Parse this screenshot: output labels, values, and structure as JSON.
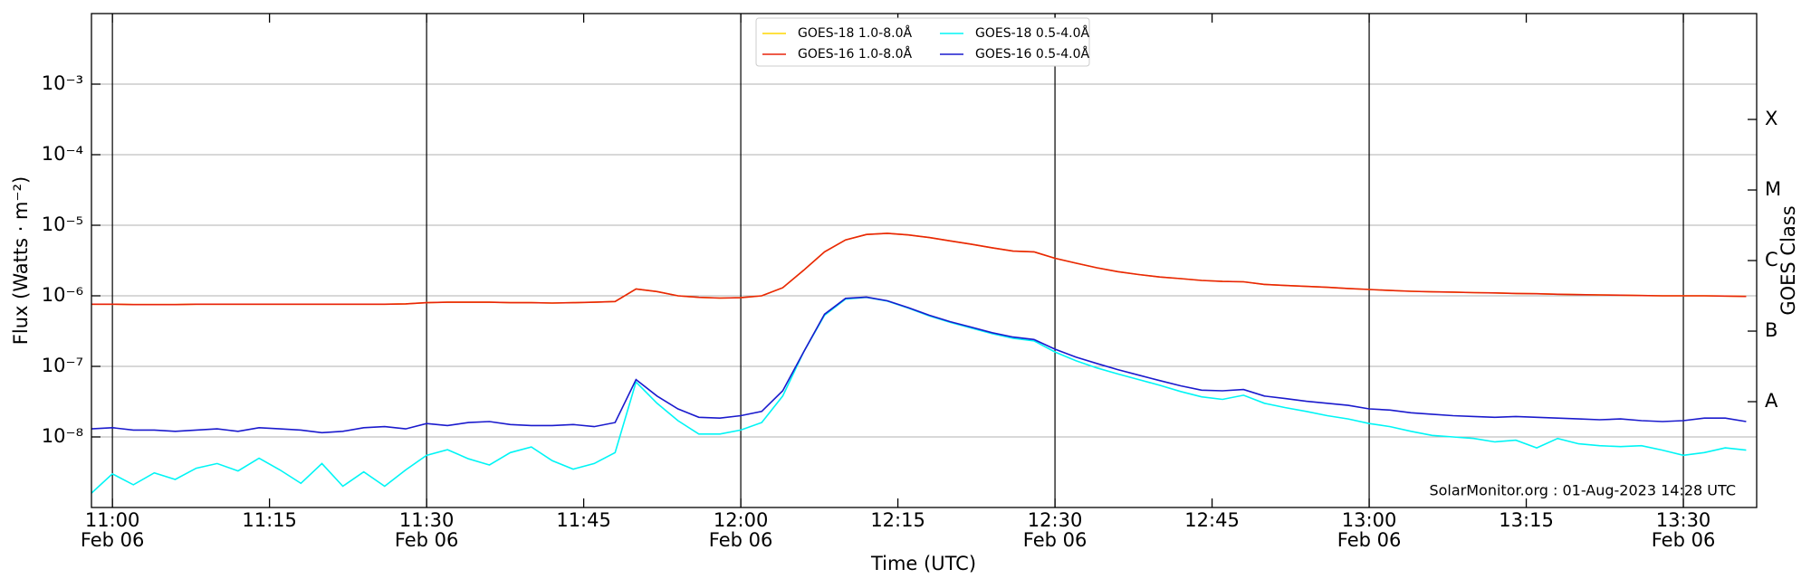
{
  "chart_data": {
    "type": "line",
    "xlabel": "Time (UTC)",
    "ylabel": "Flux (Watts · m⁻²)",
    "y2label": "GOES Class",
    "annotation": "SolarMonitor.org : 01-Aug-2023 14:28 UTC",
    "yscale": "log",
    "grid": true,
    "legend": "upper center",
    "xlim": [
      "10:58",
      "13:37"
    ],
    "ylim": [
      1e-09,
      0.01
    ],
    "y2lim": [
      1e-09,
      0.01
    ],
    "yticks": [
      {
        "value": 1e-08,
        "label": "10⁻⁸"
      },
      {
        "value": 1e-07,
        "label": "10⁻⁷"
      },
      {
        "value": 1e-06,
        "label": "10⁻⁶"
      },
      {
        "value": 1e-05,
        "label": "10⁻⁵"
      },
      {
        "value": 0.0001,
        "label": "10⁻⁴"
      },
      {
        "value": 0.001,
        "label": "10⁻³"
      }
    ],
    "y2ticks": [
      {
        "value": 3.16e-08,
        "label": "A"
      },
      {
        "value": 3.16e-07,
        "label": "B"
      },
      {
        "value": 3.16e-06,
        "label": "C"
      },
      {
        "value": 3.16e-05,
        "label": "M"
      },
      {
        "value": 0.000316,
        "label": "X"
      }
    ],
    "xticks": [
      {
        "value": "11:00",
        "label": "11:00",
        "date": "Feb 06"
      },
      {
        "value": "11:15",
        "label": "11:15"
      },
      {
        "value": "11:30",
        "label": "11:30",
        "date": "Feb 06"
      },
      {
        "value": "11:45",
        "label": "11:45"
      },
      {
        "value": "12:00",
        "label": "12:00",
        "date": "Feb 06"
      },
      {
        "value": "12:15",
        "label": "12:15"
      },
      {
        "value": "12:30",
        "label": "12:30",
        "date": "Feb 06"
      },
      {
        "value": "12:45",
        "label": "12:45"
      },
      {
        "value": "13:00",
        "label": "13:00",
        "date": "Feb 06"
      },
      {
        "value": "13:15",
        "label": "13:15"
      },
      {
        "value": "13:30",
        "label": "13:30",
        "date": "Feb 06"
      }
    ],
    "x": [
      "10:58",
      "11:00",
      "11:02",
      "11:04",
      "11:06",
      "11:08",
      "11:10",
      "11:12",
      "11:14",
      "11:16",
      "11:18",
      "11:20",
      "11:22",
      "11:24",
      "11:26",
      "11:28",
      "11:30",
      "11:32",
      "11:34",
      "11:36",
      "11:38",
      "11:40",
      "11:42",
      "11:44",
      "11:46",
      "11:48",
      "11:50",
      "11:52",
      "11:54",
      "11:56",
      "11:58",
      "12:00",
      "12:02",
      "12:04",
      "12:06",
      "12:08",
      "12:10",
      "12:12",
      "12:14",
      "12:16",
      "12:18",
      "12:20",
      "12:22",
      "12:24",
      "12:26",
      "12:28",
      "12:30",
      "12:32",
      "12:34",
      "12:36",
      "12:38",
      "12:40",
      "12:42",
      "12:44",
      "12:46",
      "12:48",
      "12:50",
      "12:52",
      "12:54",
      "12:56",
      "12:58",
      "13:00",
      "13:02",
      "13:04",
      "13:06",
      "13:08",
      "13:10",
      "13:12",
      "13:14",
      "13:16",
      "13:18",
      "13:20",
      "13:22",
      "13:24",
      "13:26",
      "13:28",
      "13:30",
      "13:32",
      "13:34",
      "13:36"
    ],
    "series": [
      {
        "name": "GOES-18 1.0-8.0Å",
        "color": "#ffd700",
        "values": [
          7.6e-07,
          7.6e-07,
          7.5e-07,
          7.5e-07,
          7.5e-07,
          7.6e-07,
          7.6e-07,
          7.6e-07,
          7.6e-07,
          7.6e-07,
          7.6e-07,
          7.6e-07,
          7.6e-07,
          7.6e-07,
          7.6e-07,
          7.7e-07,
          8e-07,
          8.1e-07,
          8.1e-07,
          8.1e-07,
          8e-07,
          8e-07,
          7.9e-07,
          8e-07,
          8.1e-07,
          8.3e-07,
          1.25e-06,
          1.15e-06,
          1e-06,
          9.5e-07,
          9.3e-07,
          9.4e-07,
          1e-06,
          1.3e-06,
          2.3e-06,
          4.2e-06,
          6.2e-06,
          7.4e-06,
          7.7e-06,
          7.3e-06,
          6.7e-06,
          6e-06,
          5.4e-06,
          4.8e-06,
          4.3e-06,
          4.2e-06,
          3.4e-06,
          2.9e-06,
          2.5e-06,
          2.2e-06,
          2e-06,
          1.85e-06,
          1.75e-06,
          1.65e-06,
          1.6e-06,
          1.58e-06,
          1.45e-06,
          1.4e-06,
          1.36e-06,
          1.32e-06,
          1.27e-06,
          1.23e-06,
          1.19e-06,
          1.16e-06,
          1.14e-06,
          1.13e-06,
          1.11e-06,
          1.1e-06,
          1.08e-06,
          1.07e-06,
          1.05e-06,
          1.04e-06,
          1.03e-06,
          1.02e-06,
          1.01e-06,
          1e-06,
          1e-06,
          1e-06,
          9.9e-07,
          9.8e-07
        ]
      },
      {
        "name": "GOES-16 1.0-8.0Å",
        "color": "#e8230c",
        "values": [
          7.6e-07,
          7.6e-07,
          7.5e-07,
          7.5e-07,
          7.5e-07,
          7.6e-07,
          7.6e-07,
          7.6e-07,
          7.6e-07,
          7.6e-07,
          7.6e-07,
          7.6e-07,
          7.6e-07,
          7.6e-07,
          7.6e-07,
          7.7e-07,
          8e-07,
          8.1e-07,
          8.1e-07,
          8.1e-07,
          8e-07,
          8e-07,
          7.9e-07,
          8e-07,
          8.1e-07,
          8.3e-07,
          1.25e-06,
          1.15e-06,
          1e-06,
          9.5e-07,
          9.3e-07,
          9.4e-07,
          1e-06,
          1.3e-06,
          2.3e-06,
          4.2e-06,
          6.2e-06,
          7.4e-06,
          7.7e-06,
          7.3e-06,
          6.7e-06,
          6e-06,
          5.4e-06,
          4.8e-06,
          4.3e-06,
          4.2e-06,
          3.4e-06,
          2.9e-06,
          2.5e-06,
          2.2e-06,
          2e-06,
          1.85e-06,
          1.75e-06,
          1.65e-06,
          1.6e-06,
          1.58e-06,
          1.45e-06,
          1.4e-06,
          1.36e-06,
          1.32e-06,
          1.27e-06,
          1.23e-06,
          1.19e-06,
          1.16e-06,
          1.14e-06,
          1.13e-06,
          1.11e-06,
          1.1e-06,
          1.08e-06,
          1.07e-06,
          1.05e-06,
          1.04e-06,
          1.03e-06,
          1.02e-06,
          1.01e-06,
          1e-06,
          1e-06,
          1e-06,
          9.9e-07,
          9.8e-07
        ]
      },
      {
        "name": "GOES-18 0.5-4.0Å",
        "color": "#00f5f5",
        "values": [
          1.6e-09,
          3e-09,
          2.1e-09,
          3.1e-09,
          2.5e-09,
          3.6e-09,
          4.2e-09,
          3.3e-09,
          5e-09,
          3.4e-09,
          2.2e-09,
          4.2e-09,
          2e-09,
          3.2e-09,
          2e-09,
          3.4e-09,
          5.5e-09,
          6.6e-09,
          4.9e-09,
          4e-09,
          6e-09,
          7.2e-09,
          4.6e-09,
          3.5e-09,
          4.2e-09,
          6e-09,
          6e-08,
          3e-08,
          1.7e-08,
          1.1e-08,
          1.1e-08,
          1.25e-08,
          1.6e-08,
          3.8e-08,
          1.6e-07,
          5.3e-07,
          9e-07,
          9.5e-07,
          8.4e-07,
          6.7e-07,
          5.2e-07,
          4.2e-07,
          3.5e-07,
          2.9e-07,
          2.5e-07,
          2.3e-07,
          1.6e-07,
          1.2e-07,
          9.5e-08,
          7.8e-08,
          6.5e-08,
          5.4e-08,
          4.4e-08,
          3.7e-08,
          3.4e-08,
          3.9e-08,
          3e-08,
          2.6e-08,
          2.3e-08,
          2e-08,
          1.8e-08,
          1.55e-08,
          1.4e-08,
          1.2e-08,
          1.05e-08,
          1e-08,
          9.5e-09,
          8.5e-09,
          9e-09,
          7e-09,
          9.5e-09,
          8e-09,
          7.5e-09,
          7.3e-09,
          7.5e-09,
          6.5e-09,
          5.5e-09,
          6e-09,
          7e-09,
          6.5e-09
        ]
      },
      {
        "name": "GOES-16 0.5-4.0Å",
        "color": "#1a1acd",
        "values": [
          1.3e-08,
          1.35e-08,
          1.25e-08,
          1.25e-08,
          1.2e-08,
          1.25e-08,
          1.3e-08,
          1.2e-08,
          1.35e-08,
          1.3e-08,
          1.25e-08,
          1.15e-08,
          1.2e-08,
          1.35e-08,
          1.4e-08,
          1.3e-08,
          1.55e-08,
          1.45e-08,
          1.6e-08,
          1.65e-08,
          1.5e-08,
          1.45e-08,
          1.45e-08,
          1.5e-08,
          1.4e-08,
          1.6e-08,
          6.5e-08,
          3.8e-08,
          2.5e-08,
          1.9e-08,
          1.85e-08,
          2e-08,
          2.3e-08,
          4.5e-08,
          1.6e-07,
          5.5e-07,
          9.2e-07,
          9.6e-07,
          8.5e-07,
          6.8e-07,
          5.3e-07,
          4.3e-07,
          3.6e-07,
          3e-07,
          2.6e-07,
          2.4e-07,
          1.75e-07,
          1.35e-07,
          1.1e-07,
          9e-08,
          7.5e-08,
          6.3e-08,
          5.3e-08,
          4.6e-08,
          4.5e-08,
          4.7e-08,
          3.8e-08,
          3.5e-08,
          3.2e-08,
          3e-08,
          2.8e-08,
          2.5e-08,
          2.4e-08,
          2.2e-08,
          2.1e-08,
          2e-08,
          1.95e-08,
          1.9e-08,
          1.95e-08,
          1.9e-08,
          1.85e-08,
          1.8e-08,
          1.75e-08,
          1.8e-08,
          1.7e-08,
          1.65e-08,
          1.7e-08,
          1.85e-08,
          1.85e-08,
          1.65e-08
        ]
      }
    ]
  }
}
